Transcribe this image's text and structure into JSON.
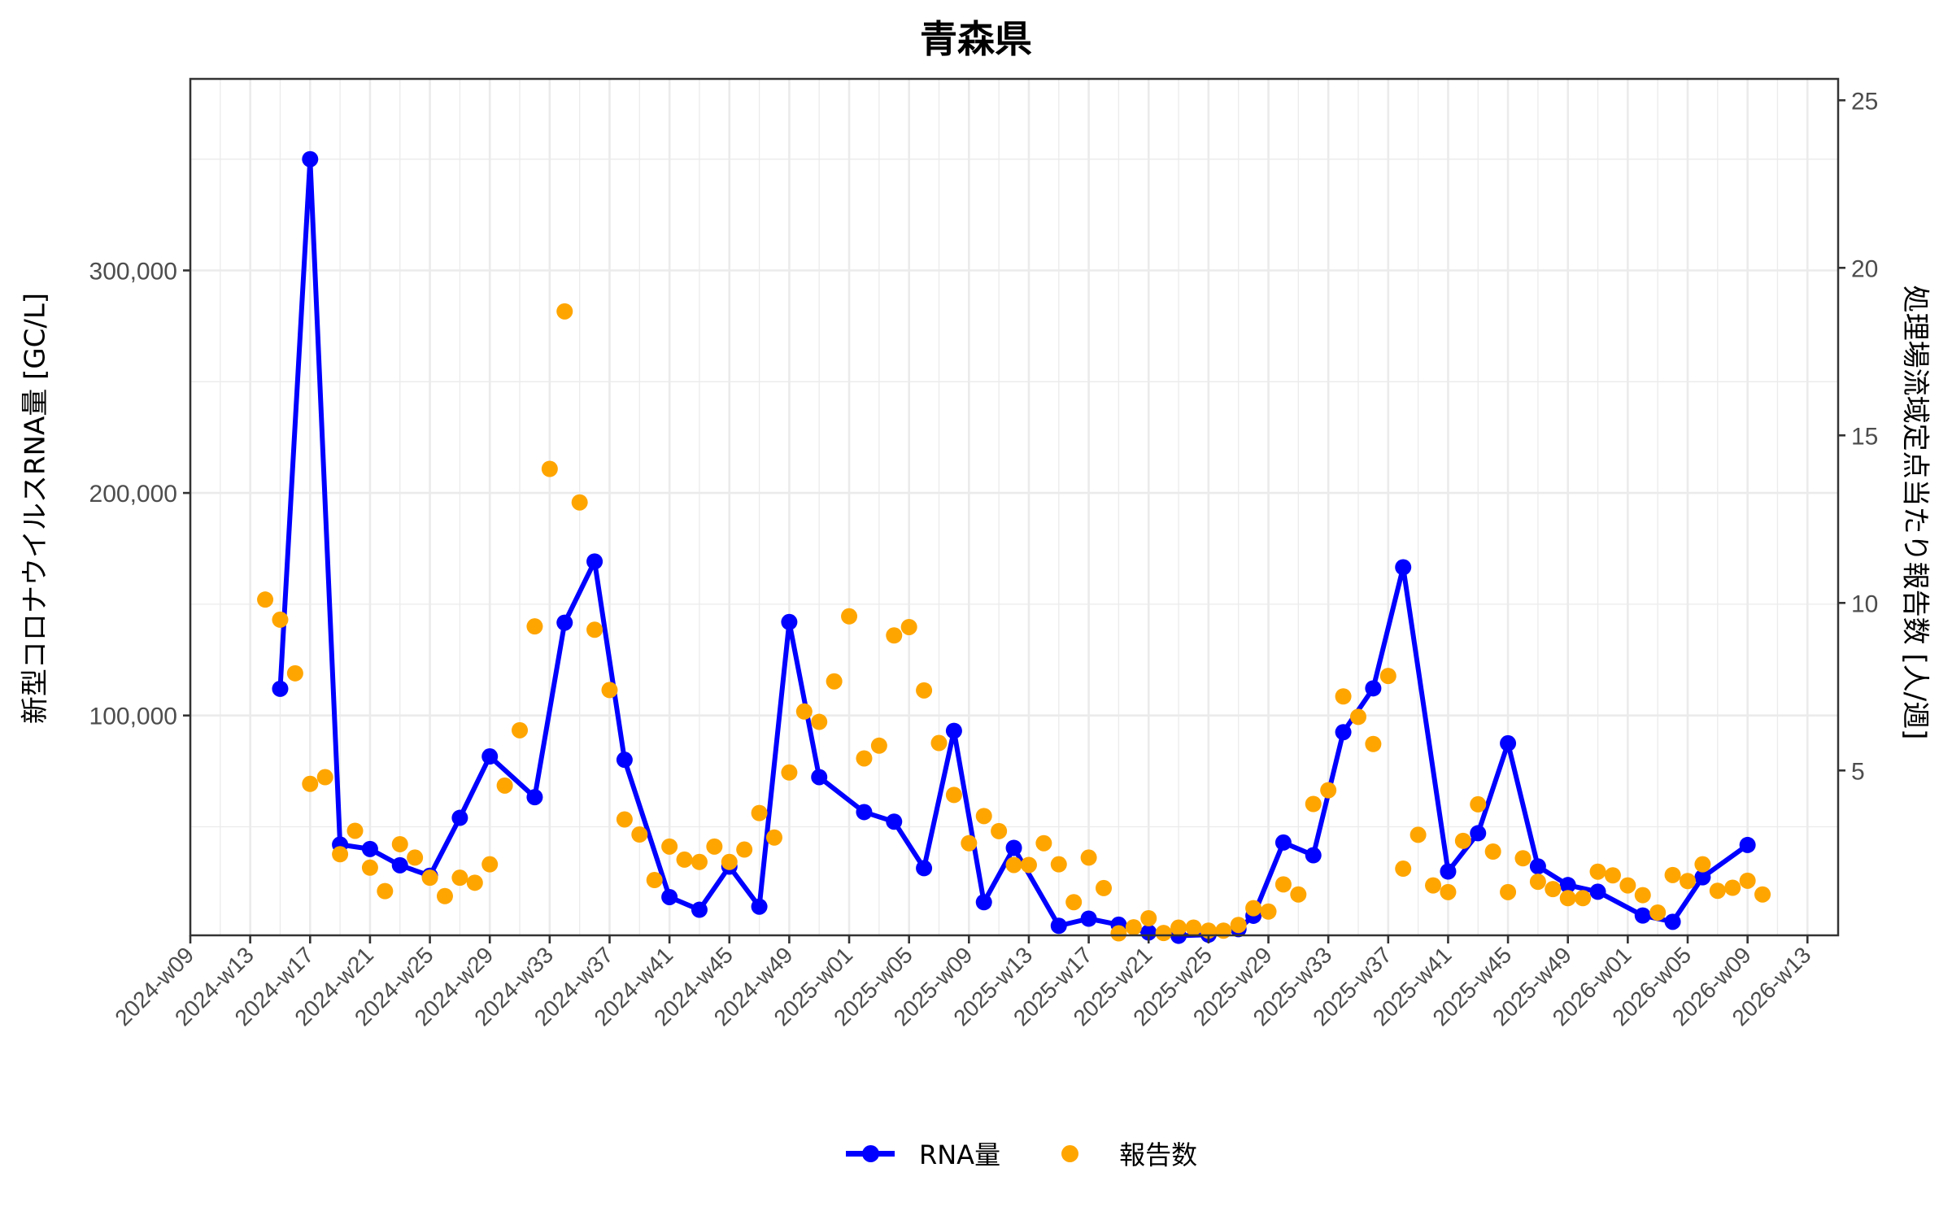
{
  "chart_data": {
    "type": "line",
    "title": "青森県",
    "xlabel": "",
    "ylabel": "新型コロナウイルスRNA量 [GC/L]",
    "ylabel_right": "処理場流域定点当たり報告数 [人/週]",
    "ylim": [
      0,
      385000
    ],
    "ylim_right": [
      0,
      25.6
    ],
    "y_ticks": [
      100000,
      200000,
      300000
    ],
    "y_tick_labels": [
      "100,000",
      "200,000",
      "300,000"
    ],
    "y_right_ticks": [
      5,
      10,
      15,
      20,
      25
    ],
    "y_right_tick_labels": [
      "5",
      "10",
      "15",
      "20",
      "25"
    ],
    "x_ticks": [
      "2024-w09",
      "2024-w13",
      "2024-w17",
      "2024-w21",
      "2024-w25",
      "2024-w29",
      "2024-w33",
      "2024-w37",
      "2024-w41",
      "2024-w45",
      "2024-w49",
      "2025-w01",
      "2025-w05",
      "2025-w09",
      "2025-w13",
      "2025-w17",
      "2025-w21",
      "2025-w25",
      "2025-w29",
      "2025-w33",
      "2025-w37",
      "2025-w41",
      "2025-w45",
      "2025-w49",
      "2026-w01",
      "2026-w05",
      "2026-w09",
      "2026-w13"
    ],
    "grid": true,
    "legend_position": "bottom",
    "series": [
      {
        "name": "RNA量",
        "type": "line",
        "axis": "left",
        "color": "#0000ff",
        "points": [
          [
            "2024-w15",
            112000
          ],
          [
            "2024-w17",
            350000
          ],
          [
            "2024-w19",
            42000
          ],
          [
            "2024-w21",
            40000
          ],
          [
            "2024-w23",
            32700
          ],
          [
            "2024-w25",
            28000
          ],
          [
            "2024-w27",
            54000
          ],
          [
            "2024-w29",
            81600
          ],
          [
            "2024-w32",
            63300
          ],
          [
            "2024-w34",
            141700
          ],
          [
            "2024-w36",
            169200
          ],
          [
            "2024-w38",
            80100
          ],
          [
            "2024-w41",
            18400
          ],
          [
            "2024-w43",
            12700
          ],
          [
            "2024-w45",
            32100
          ],
          [
            "2024-w47",
            14100
          ],
          [
            "2024-w49",
            142000
          ],
          [
            "2024-w51",
            72300
          ],
          [
            "2025-w02",
            56600
          ],
          [
            "2025-w04",
            52300
          ],
          [
            "2025-w06",
            31400
          ],
          [
            "2025-w08",
            93100
          ],
          [
            "2025-w10",
            16100
          ],
          [
            "2025-w12",
            40500
          ],
          [
            "2025-w15",
            5500
          ],
          [
            "2025-w17",
            8700
          ],
          [
            "2025-w19",
            6000
          ],
          [
            "2025-w21",
            2500
          ],
          [
            "2025-w23",
            1000
          ],
          [
            "2025-w25",
            1500
          ],
          [
            "2025-w27",
            4000
          ],
          [
            "2025-w28",
            10000
          ],
          [
            "2025-w30",
            42900
          ],
          [
            "2025-w32",
            37200
          ],
          [
            "2025-w34",
            92500
          ],
          [
            "2025-w36",
            112200
          ],
          [
            "2025-w38",
            166600
          ],
          [
            "2025-w41",
            29900
          ],
          [
            "2025-w43",
            47100
          ],
          [
            "2025-w45",
            87500
          ],
          [
            "2025-w47",
            32200
          ],
          [
            "2025-w49",
            23800
          ],
          [
            "2025-w51",
            20800
          ],
          [
            "2026-w02",
            10100
          ],
          [
            "2026-w04",
            7300
          ],
          [
            "2026-w06",
            27300
          ],
          [
            "2026-w09",
            41800
          ]
        ]
      },
      {
        "name": "報告数",
        "type": "scatter",
        "axis": "right",
        "color": "#ffa500",
        "points": [
          [
            "2024-w14",
            10.1
          ],
          [
            "2024-w15",
            9.5
          ],
          [
            "2024-w16",
            7.9
          ],
          [
            "2024-w17",
            4.6
          ],
          [
            "2024-w18",
            4.8
          ],
          [
            "2024-w19",
            2.5
          ],
          [
            "2024-w20",
            3.2
          ],
          [
            "2024-w21",
            2.1
          ],
          [
            "2024-w22",
            1.4
          ],
          [
            "2024-w23",
            2.8
          ],
          [
            "2024-w24",
            2.4
          ],
          [
            "2024-w25",
            1.8
          ],
          [
            "2024-w26",
            1.25
          ],
          [
            "2024-w27",
            1.8
          ],
          [
            "2024-w28",
            1.65
          ],
          [
            "2024-w29",
            2.2
          ],
          [
            "2024-w30",
            4.55
          ],
          [
            "2024-w31",
            6.2
          ],
          [
            "2024-w32",
            9.3
          ],
          [
            "2024-w33",
            14.0
          ],
          [
            "2024-w34",
            18.7
          ],
          [
            "2024-w35",
            13.0
          ],
          [
            "2024-w36",
            9.2
          ],
          [
            "2024-w37",
            7.4
          ],
          [
            "2024-w38",
            3.54
          ],
          [
            "2024-w39",
            3.09
          ],
          [
            "2024-w40",
            1.73
          ],
          [
            "2024-w41",
            2.73
          ],
          [
            "2024-w42",
            2.34
          ],
          [
            "2024-w43",
            2.27
          ],
          [
            "2024-w44",
            2.73
          ],
          [
            "2024-w45",
            2.27
          ],
          [
            "2024-w46",
            2.64
          ],
          [
            "2024-w47",
            3.73
          ],
          [
            "2024-w48",
            3.0
          ],
          [
            "2024-w49",
            4.94
          ],
          [
            "2024-w50",
            6.76
          ],
          [
            "2024-w51",
            6.45
          ],
          [
            "2024-w52",
            7.66
          ],
          [
            "2025-w01",
            9.6
          ],
          [
            "2025-w02",
            5.36
          ],
          [
            "2025-w03",
            5.74
          ],
          [
            "2025-w04",
            9.03
          ],
          [
            "2025-w05",
            9.28
          ],
          [
            "2025-w06",
            7.39
          ],
          [
            "2025-w07",
            5.82
          ],
          [
            "2025-w08",
            4.27
          ],
          [
            "2025-w09",
            2.83
          ],
          [
            "2025-w10",
            3.64
          ],
          [
            "2025-w11",
            3.19
          ],
          [
            "2025-w12",
            2.18
          ],
          [
            "2025-w13",
            2.18
          ],
          [
            "2025-w14",
            2.83
          ],
          [
            "2025-w15",
            2.2
          ],
          [
            "2025-w16",
            1.07
          ],
          [
            "2025-w17",
            2.4
          ],
          [
            "2025-w18",
            1.49
          ],
          [
            "2025-w19",
            0.14
          ],
          [
            "2025-w20",
            0.32
          ],
          [
            "2025-w21",
            0.59
          ],
          [
            "2025-w22",
            0.15
          ],
          [
            "2025-w23",
            0.31
          ],
          [
            "2025-w24",
            0.31
          ],
          [
            "2025-w25",
            0.22
          ],
          [
            "2025-w26",
            0.22
          ],
          [
            "2025-w27",
            0.39
          ],
          [
            "2025-w28",
            0.89
          ],
          [
            "2025-w29",
            0.79
          ],
          [
            "2025-w30",
            1.6
          ],
          [
            "2025-w31",
            1.3
          ],
          [
            "2025-w32",
            4.0
          ],
          [
            "2025-w33",
            4.41
          ],
          [
            "2025-w34",
            7.21
          ],
          [
            "2025-w35",
            6.6
          ],
          [
            "2025-w36",
            5.79
          ],
          [
            "2025-w37",
            7.82
          ],
          [
            "2025-w38",
            2.07
          ],
          [
            "2025-w39",
            3.08
          ],
          [
            "2025-w40",
            1.57
          ],
          [
            "2025-w41",
            1.37
          ],
          [
            "2025-w42",
            2.9
          ],
          [
            "2025-w43",
            3.99
          ],
          [
            "2025-w44",
            2.58
          ],
          [
            "2025-w45",
            1.37
          ],
          [
            "2025-w46",
            2.38
          ],
          [
            "2025-w47",
            1.68
          ],
          [
            "2025-w48",
            1.46
          ],
          [
            "2025-w49",
            1.19
          ],
          [
            "2025-w50",
            1.19
          ],
          [
            "2025-w51",
            1.98
          ],
          [
            "2025-w52",
            1.87
          ],
          [
            "2026-w01",
            1.57
          ],
          [
            "2026-w02",
            1.28
          ],
          [
            "2026-w03",
            0.76
          ],
          [
            "2026-w04",
            1.88
          ],
          [
            "2026-w05",
            1.7
          ],
          [
            "2026-w06",
            2.2
          ],
          [
            "2026-w07",
            1.41
          ],
          [
            "2026-w08",
            1.5
          ],
          [
            "2026-w09",
            1.71
          ],
          [
            "2026-w10",
            1.3
          ]
        ]
      }
    ]
  },
  "legend": {
    "rna_label": "RNA量",
    "report_label": "報告数"
  }
}
